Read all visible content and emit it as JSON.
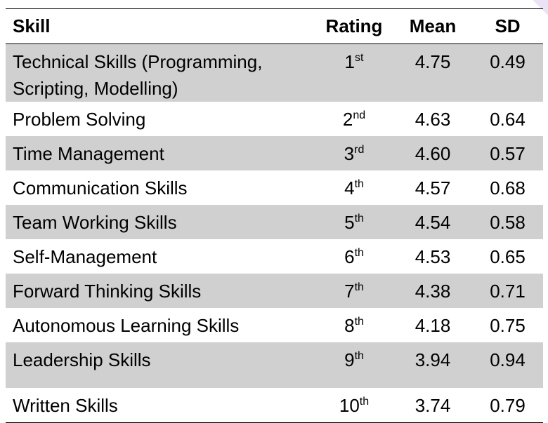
{
  "table": {
    "headers": {
      "skill": "Skill",
      "rating": "Rating",
      "mean": "Mean",
      "sd": "SD"
    },
    "rows": [
      {
        "skill": "Technical Skills (Programming, Scripting, Modelling)",
        "rating_num": "1",
        "rating_suffix": "st",
        "mean": "4.75",
        "sd": "0.49",
        "shaded": true
      },
      {
        "skill": "Problem Solving",
        "rating_num": "2",
        "rating_suffix": "nd",
        "mean": "4.63",
        "sd": "0.64",
        "shaded": false
      },
      {
        "skill": "Time Management",
        "rating_num": "3",
        "rating_suffix": "rd",
        "mean": "4.60",
        "sd": "0.57",
        "shaded": true
      },
      {
        "skill": "Communication Skills",
        "rating_num": "4",
        "rating_suffix": "th",
        "mean": "4.57",
        "sd": "0.68",
        "shaded": false
      },
      {
        "skill": "Team Working Skills",
        "rating_num": "5",
        "rating_suffix": "th",
        "mean": "4.54",
        "sd": "0.58",
        "shaded": true
      },
      {
        "skill": "Self-Management",
        "rating_num": "6",
        "rating_suffix": "th",
        "mean": "4.53",
        "sd": "0.65",
        "shaded": false
      },
      {
        "skill": "Forward Thinking Skills",
        "rating_num": "7",
        "rating_suffix": "th",
        "mean": "4.38",
        "sd": "0.71",
        "shaded": true
      },
      {
        "skill": "Autonomous Learning Skills",
        "rating_num": "8",
        "rating_suffix": "th",
        "mean": "4.18",
        "sd": "0.75",
        "shaded": false
      },
      {
        "skill": "Leadership Skills",
        "rating_num": "9",
        "rating_suffix": "th",
        "mean": "3.94",
        "sd": "0.94",
        "shaded": true
      },
      {
        "skill": "Written Skills",
        "rating_num": "10",
        "rating_suffix": "th",
        "mean": "3.74",
        "sd": "0.79",
        "shaded": false
      }
    ],
    "shade_color": "#d0d0d0"
  }
}
